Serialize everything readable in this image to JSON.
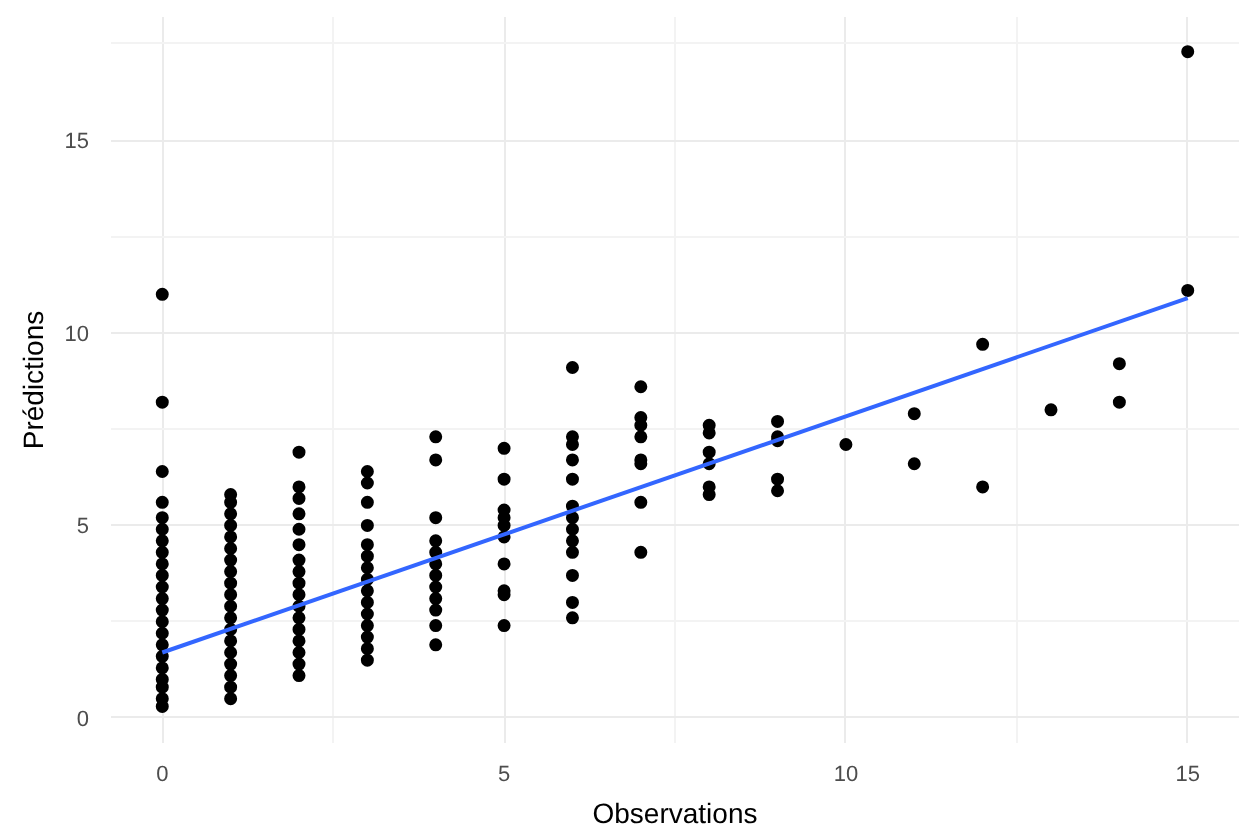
{
  "chart_data": {
    "type": "scatter",
    "xlabel": "Observations",
    "ylabel": "Prédictions",
    "xlim": [
      -0.75,
      15.75
    ],
    "ylim": [
      -0.65,
      18.2
    ],
    "xticks": [
      0,
      5,
      10,
      15
    ],
    "yticks": [
      0,
      5,
      10,
      15
    ],
    "grid": true,
    "marker": "circle",
    "series": [
      {
        "color": "#000000",
        "x": [
          0,
          0,
          0,
          0,
          0,
          0,
          0,
          0,
          0,
          0,
          0,
          0,
          0,
          0,
          0,
          0,
          0,
          0,
          0,
          0,
          0,
          0,
          1,
          1,
          1,
          1,
          1,
          1,
          1,
          1,
          1,
          1,
          1,
          1,
          1,
          1,
          1,
          1,
          1,
          1,
          1,
          2,
          2,
          2,
          2,
          2,
          2,
          2,
          2,
          2,
          2,
          2,
          2,
          2,
          2,
          2,
          2,
          2,
          3,
          3,
          3,
          3,
          3,
          3,
          3,
          3,
          3,
          3,
          3,
          3,
          3,
          3,
          3,
          4,
          4,
          4,
          4,
          4,
          4,
          4,
          4,
          4,
          4,
          4,
          4,
          5,
          5,
          5,
          5,
          5,
          5,
          5,
          5,
          5,
          5,
          6,
          6,
          6,
          6,
          6,
          6,
          6,
          6,
          6,
          6,
          6,
          6,
          6,
          7,
          7,
          7,
          7,
          7,
          7,
          7,
          7,
          8,
          8,
          8,
          8,
          8,
          8,
          9,
          9,
          9,
          9,
          9,
          10,
          11,
          11,
          12,
          12,
          13,
          14,
          14,
          15,
          15
        ],
        "values": [
          0.3,
          0.5,
          0.8,
          1.0,
          1.3,
          1.6,
          1.9,
          2.2,
          2.5,
          2.8,
          3.1,
          3.4,
          3.7,
          4.0,
          4.3,
          4.6,
          4.9,
          5.2,
          5.6,
          6.4,
          8.2,
          11.0,
          0.5,
          0.8,
          1.1,
          1.4,
          1.7,
          2.0,
          2.3,
          2.6,
          2.9,
          3.2,
          3.5,
          3.8,
          4.1,
          4.4,
          4.7,
          5.0,
          5.3,
          5.6,
          5.8,
          1.1,
          1.4,
          1.7,
          2.0,
          2.3,
          2.6,
          2.9,
          3.2,
          3.5,
          3.8,
          4.1,
          4.5,
          4.9,
          5.3,
          5.7,
          6.0,
          6.9,
          1.5,
          1.8,
          2.1,
          2.4,
          2.7,
          3.0,
          3.3,
          3.6,
          3.9,
          4.2,
          4.5,
          5.0,
          5.6,
          6.1,
          6.4,
          1.9,
          2.4,
          2.8,
          3.1,
          3.4,
          3.7,
          4.0,
          4.3,
          4.6,
          5.2,
          6.7,
          7.3,
          2.4,
          3.2,
          3.3,
          4.0,
          4.7,
          5.0,
          5.2,
          5.4,
          6.2,
          7.0,
          2.6,
          3.0,
          3.7,
          4.3,
          4.6,
          4.9,
          5.2,
          5.5,
          6.2,
          6.7,
          7.1,
          7.3,
          9.1,
          4.3,
          5.6,
          6.6,
          6.7,
          7.3,
          7.6,
          7.8,
          8.6,
          5.8,
          6.0,
          6.6,
          6.9,
          7.4,
          7.6,
          5.9,
          6.2,
          7.2,
          7.3,
          7.7,
          7.1,
          6.6,
          7.9,
          6.0,
          9.7,
          8.0,
          8.2,
          9.2,
          11.1,
          17.3
        ]
      },
      {
        "type": "line",
        "color": "#3366ff",
        "x": [
          0,
          15
        ],
        "values": [
          1.7,
          10.9
        ],
        "marker": "none"
      }
    ]
  }
}
